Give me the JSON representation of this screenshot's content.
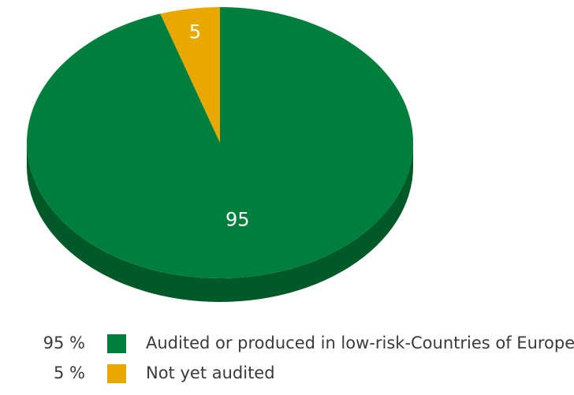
{
  "chart_data": {
    "type": "pie",
    "categories": [
      "Audited or produced in low-risk-Countries of Europe",
      "Not yet audited"
    ],
    "values": [
      95,
      5
    ],
    "slice_labels": [
      "95",
      "5"
    ],
    "percent_labels": [
      "95 %",
      "5 %"
    ],
    "colors": [
      "#007f3c",
      "#e8a800"
    ],
    "side_colors": [
      "#005a28",
      "#a67800"
    ],
    "style": "3d",
    "legend_position": "bottom-left"
  }
}
